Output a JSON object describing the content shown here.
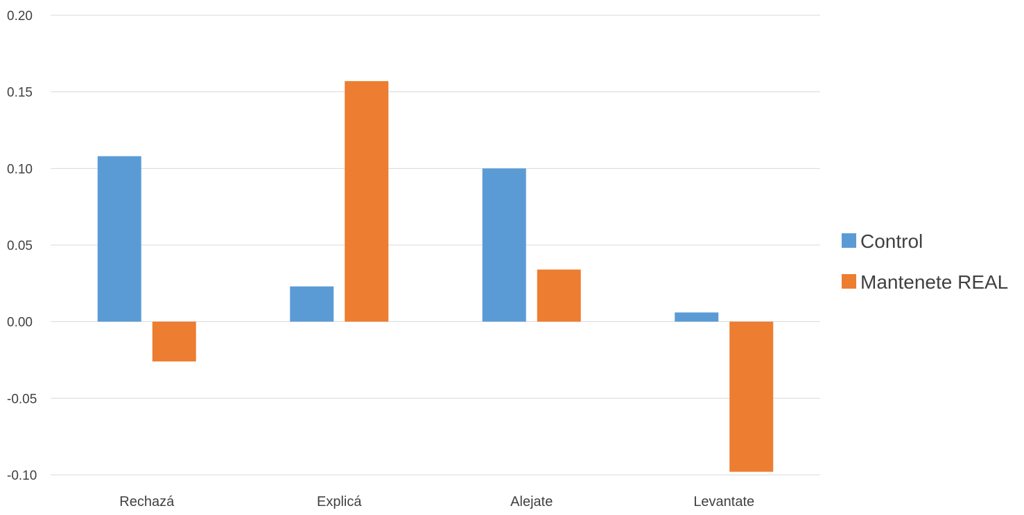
{
  "chart_data": {
    "type": "bar",
    "categories": [
      "Rechazá",
      "Explicá",
      "Alejate",
      "Levantate"
    ],
    "series": [
      {
        "name": "Control",
        "color": "#5b9bd5",
        "values": [
          0.108,
          0.023,
          0.1,
          0.006
        ]
      },
      {
        "name": "Mantenete REAL",
        "color": "#ed7d31",
        "values": [
          -0.026,
          0.157,
          0.034,
          -0.098
        ]
      }
    ],
    "yticks": [
      "0.20",
      "0.15",
      "0.10",
      "0.05",
      "0.00",
      "-0.05",
      "-0.10"
    ],
    "ylim": [
      -0.1,
      0.2
    ],
    "grid": true,
    "legend_position": "right",
    "title": "",
    "xlabel": "",
    "ylabel": ""
  }
}
